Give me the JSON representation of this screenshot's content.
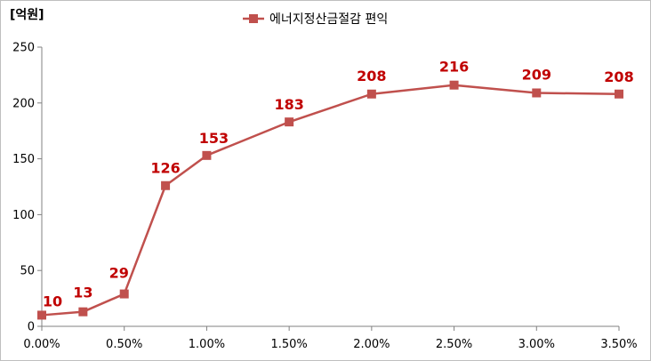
{
  "chart_data": {
    "type": "line",
    "unit_label": "[억원]",
    "categories": [
      "0.00%",
      "0.25%",
      "0.50%",
      "0.75%",
      "1.00%",
      "1.50%",
      "2.00%",
      "2.50%",
      "3.00%",
      "3.50%"
    ],
    "x_values": [
      0.0,
      0.25,
      0.5,
      0.75,
      1.0,
      1.5,
      2.0,
      2.5,
      3.0,
      3.5
    ],
    "x_ticks": [
      "0.00%",
      "0.50%",
      "1.00%",
      "1.50%",
      "2.00%",
      "2.50%",
      "3.00%",
      "3.50%"
    ],
    "x_tick_values": [
      0.0,
      0.5,
      1.0,
      1.5,
      2.0,
      2.5,
      3.0,
      3.5
    ],
    "xlim": [
      0.0,
      3.5
    ],
    "ylim": [
      0,
      250
    ],
    "y_ticks": [
      "0",
      "50",
      "100",
      "150",
      "200",
      "250"
    ],
    "y_tick_values": [
      0,
      50,
      100,
      150,
      200,
      250
    ],
    "series": [
      {
        "name": "에너지정산금절감 편익",
        "values": [
          10,
          13,
          29,
          126,
          153,
          183,
          208,
          216,
          209,
          208
        ],
        "labels": [
          "10",
          "13",
          "29",
          "126",
          "153",
          "183",
          "208",
          "216",
          "209",
          "208"
        ],
        "color": "#c0504d"
      }
    ],
    "data_label_color": "#c00000",
    "grid": false,
    "legend": "top"
  }
}
